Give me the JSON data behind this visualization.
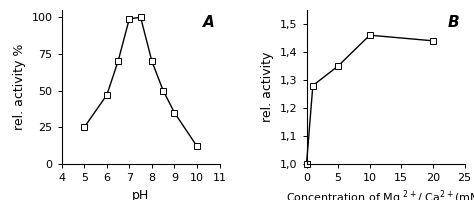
{
  "chart_A": {
    "label": "A",
    "x": [
      5,
      6,
      6.5,
      7,
      7.5,
      8,
      8.5,
      9,
      10
    ],
    "y": [
      25,
      47,
      70,
      99,
      100,
      70,
      50,
      35,
      12
    ],
    "xlabel": "pH",
    "ylabel": "rel. activity %",
    "xlim": [
      4,
      11
    ],
    "ylim": [
      0,
      105
    ],
    "xticks": [
      4,
      5,
      6,
      7,
      8,
      9,
      10,
      11
    ],
    "yticks": [
      0,
      25,
      50,
      75,
      100
    ],
    "ytick_labels": [
      "0",
      "25",
      "50",
      "75",
      "100"
    ]
  },
  "chart_B": {
    "label": "B",
    "x": [
      0,
      1,
      5,
      10,
      20
    ],
    "y": [
      1.0,
      1.28,
      1.35,
      1.46,
      1.44
    ],
    "ylabel": "rel. activity",
    "xlim": [
      0,
      25
    ],
    "ylim": [
      1.0,
      1.55
    ],
    "xticks": [
      0,
      5,
      10,
      15,
      20,
      25
    ],
    "yticks": [
      1.0,
      1.1,
      1.2,
      1.3,
      1.4,
      1.5
    ],
    "ytick_labels": [
      "1,0",
      "1,1",
      "1,2",
      "1,3",
      "1,4",
      "1,5"
    ]
  },
  "line_color": "#000000",
  "marker": "s",
  "marker_facecolor": "white",
  "marker_edgecolor": "#000000",
  "marker_size": 4,
  "linewidth": 1.0,
  "tick_fontsize": 8,
  "axis_label_fontsize": 9,
  "panel_label_fontsize": 11,
  "background": "#ffffff"
}
